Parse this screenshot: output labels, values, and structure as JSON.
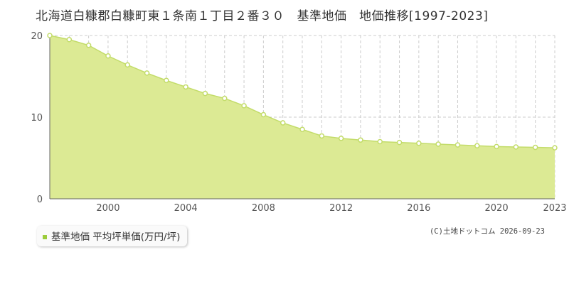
{
  "title": "北海道白糠郡白糠町東１条南１丁目２番３０　基準地価　地価推移[1997-2023]",
  "credit": "(C)土地ドットコム 2026-09-23",
  "colors": {
    "fill": "#dcea94",
    "line": "#c3dc6a",
    "marker_fill": "#ffffff",
    "legend_swatch": "#9ccc3c",
    "grid": "#cccccc"
  },
  "chart_data": {
    "type": "area",
    "x": [
      1997,
      1998,
      1999,
      2000,
      2001,
      2002,
      2003,
      2004,
      2005,
      2006,
      2007,
      2008,
      2009,
      2010,
      2011,
      2012,
      2013,
      2014,
      2015,
      2016,
      2017,
      2018,
      2019,
      2020,
      2021,
      2022,
      2023
    ],
    "series": [
      {
        "name": "基準地価 平均坪単価(万円/坪)",
        "values": [
          20.0,
          19.5,
          18.8,
          17.5,
          16.4,
          15.4,
          14.5,
          13.7,
          12.9,
          12.3,
          11.4,
          10.3,
          9.3,
          8.5,
          7.7,
          7.4,
          7.2,
          7.0,
          6.9,
          6.8,
          6.7,
          6.6,
          6.5,
          6.4,
          6.35,
          6.3,
          6.25
        ]
      }
    ],
    "xlim": [
      1997,
      2023
    ],
    "ylim": [
      0,
      20
    ],
    "x_ticks": [
      "2000",
      "2004",
      "2008",
      "2012",
      "2016",
      "2020",
      "2023"
    ],
    "y_ticks": [
      "0",
      "10",
      "20"
    ],
    "grid": true,
    "legend_position": "bottom-left"
  }
}
